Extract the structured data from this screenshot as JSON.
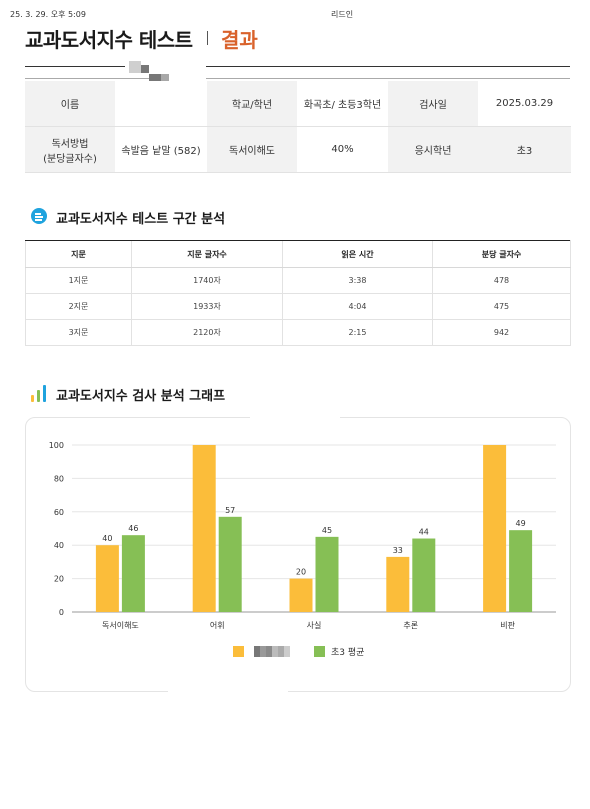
{
  "print_header": {
    "datetime": "25. 3. 29. 오후 5:09",
    "site_title": "리드인"
  },
  "header": {
    "title": "교과도서지수 테스트",
    "result_label": "결과"
  },
  "info_table": {
    "name_label": "이름",
    "school_label": "학교/학년",
    "school_value": "화곡초/ 초등3학년",
    "test_date_label": "검사일",
    "test_date_value": "2025.03.29",
    "method_label_1": "독서방법",
    "method_label_2": "(분당글자수)",
    "method_value": "속발음 낱말 (582)",
    "comprehension_label": "독서이해도",
    "comprehension_value": "40%",
    "grade_label": "응시학년",
    "grade_value": "초3"
  },
  "segment_section": {
    "title": "교과도서지수 테스트 구간 분석",
    "headers": [
      "지문",
      "지문 글자수",
      "읽은 시간",
      "분당 글자수"
    ],
    "rows": [
      [
        "1지문",
        "1740자",
        "3:38",
        "478"
      ],
      [
        "2지문",
        "1933자",
        "4:04",
        "475"
      ],
      [
        "3지문",
        "2120자",
        "2:15",
        "942"
      ]
    ]
  },
  "graph_section": {
    "title": "교과도서지수 검사 분석 그래프"
  },
  "chart_data": {
    "type": "bar",
    "categories": [
      "독서이해도",
      "어휘",
      "사실",
      "추론",
      "비판"
    ],
    "series": [
      {
        "values": [
          40,
          100,
          20,
          33,
          100
        ],
        "color": "#fbbd3a"
      },
      {
        "name": "초3 평균",
        "values": [
          46,
          57,
          45,
          44,
          49
        ],
        "color": "#86bf55"
      }
    ],
    "ylim": [
      0,
      100
    ],
    "yticks": [
      0,
      20,
      40,
      60,
      80,
      100
    ],
    "grid": true,
    "legend": "bottom-center",
    "data_labels_on_first_series": [
      "40",
      "",
      "20",
      "33",
      ""
    ],
    "data_labels_on_second_series": [
      "46",
      "57",
      "45",
      "44",
      "49"
    ]
  }
}
